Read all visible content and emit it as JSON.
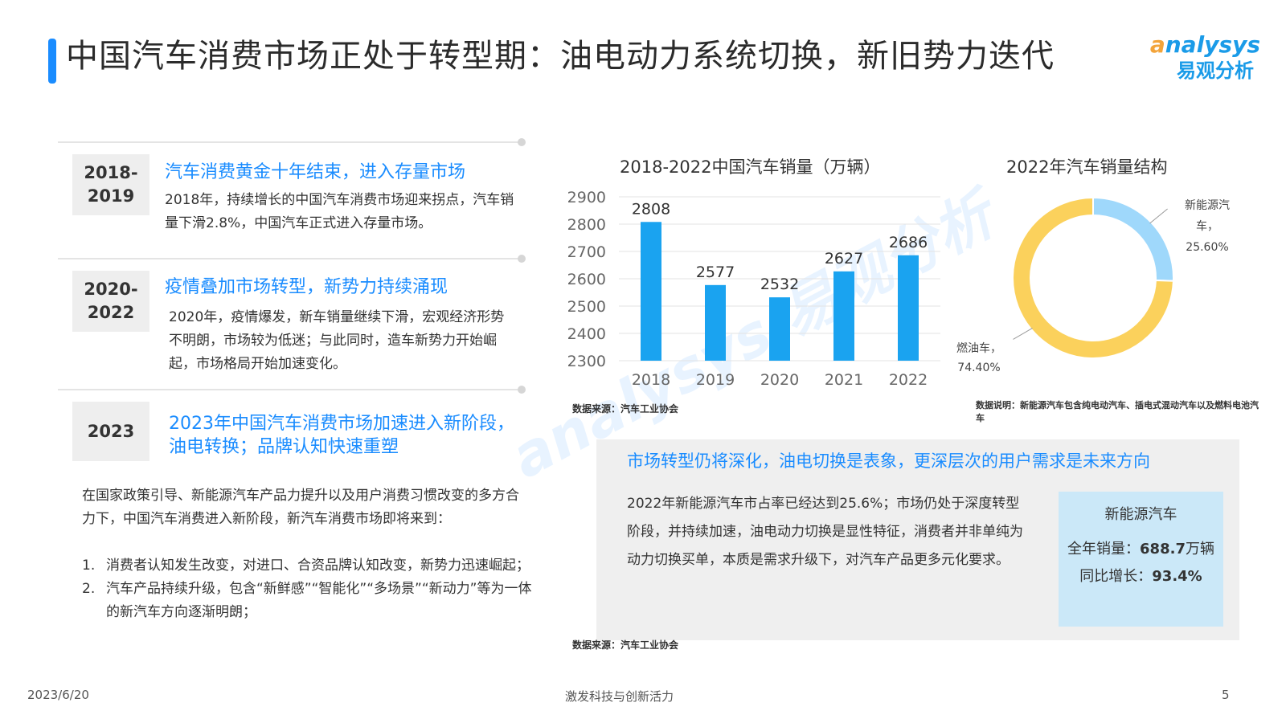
{
  "page": {
    "title": "中国汽车消费市场正处于转型期：油电动力系统切换，新旧势力迭代",
    "logo_en_a": "a",
    "logo_en_rest": "nalysys",
    "logo_cn": "易观分析",
    "watermark": "analysys 易观分析"
  },
  "sections": [
    {
      "years": "2018-2019",
      "heading": "汽车消费黄金十年结束，进入存量市场",
      "body": "2018年，持续增长的中国汽车消费市场迎来拐点，汽车销量下滑2.8%，中国汽车正式进入存量市场。"
    },
    {
      "years": "2020-2022",
      "heading": "疫情叠加市场转型，新势力持续涌现",
      "body": "2020年，疫情爆发，新车销量继续下滑，宏观经济形势不明朗，市场较为低迷；与此同时，造车新势力开始崛起，市场格局开始加速变化。"
    },
    {
      "years": "2023",
      "heading": "2023年中国汽车消费市场加速进入新阶段，油电转换；品牌认知快速重塑",
      "body": ""
    }
  ],
  "intro": "在国家政策引导、新能源汽车产品力提升以及用户消费习惯改变的多方合力下，中国汽车消费进入新阶段，新汽车消费市场即将来到：",
  "list": [
    {
      "num": "1.",
      "text": "消费者认知发生改变，对进口、合资品牌认知改变，新势力迅速崛起；"
    },
    {
      "num": "2.",
      "text": "汽车产品持续升级，包含“新鲜感”“智能化”“多场景”“新动力”等为一体的新汽车方向逐渐明朗；"
    }
  ],
  "chart_data": [
    {
      "type": "bar",
      "title": "2018-2022中国汽车销量（万辆）",
      "categories": [
        "2018",
        "2019",
        "2020",
        "2021",
        "2022"
      ],
      "values": [
        2808,
        2577,
        2532,
        2627,
        2686
      ],
      "ylim": [
        2300,
        2900
      ],
      "yticks": [
        2900,
        2800,
        2700,
        2600,
        2500,
        2400,
        2300
      ],
      "grid": true,
      "color": "#1aa3f0",
      "source": "数据来源：汽车工业协会"
    },
    {
      "type": "pie",
      "title": "2022年汽车销量结构",
      "slices": [
        {
          "label": "新能源汽车，",
          "label_lines": [
            "新能源汽",
            "车，"
          ],
          "pct_text": "25.60%",
          "value": 25.6,
          "color": "#9fd8fb"
        },
        {
          "label": "燃油车，",
          "label_lines": [
            "燃油车，"
          ],
          "pct_text": "74.40%",
          "value": 74.4,
          "color": "#fbd15c"
        }
      ],
      "donut": true,
      "note": "数据说明：新能源汽车包含纯电动汽车、插电式混动汽车以及燃料电池汽车"
    }
  ],
  "insight": {
    "title": "市场转型仍将深化，油电切换是表象，更深层次的用户需求是未来方向",
    "text": "2022年新能源汽车市占率已经达到25.6%；市场仍处于深度转型阶段，并持续加速，油电动力切换是显性特征，消费者并非单纯为动力切换买单，本质是需求升级下，对汽车产品更多元化要求。",
    "kpi_title": "新能源汽车",
    "kpi_sales_label": "全年销量：",
    "kpi_sales_value": "688.7",
    "kpi_sales_unit": "万辆",
    "kpi_growth_label": "同比增长：",
    "kpi_growth_value": "93.4%",
    "source": "数据来源：汽车工业协会"
  },
  "footer": {
    "date": "2023/6/20",
    "slogan": "激发科技与创新活力",
    "page": "5"
  }
}
